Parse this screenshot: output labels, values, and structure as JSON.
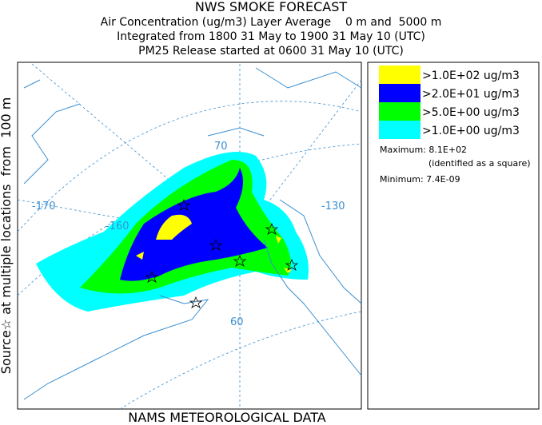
{
  "header": {
    "title": "NWS SMOKE FORECAST",
    "lines": [
      "Air Concentration (ug/m3) Layer Average    0 m and  5000 m",
      "Integrated from 1800 31 May to 1900 31 May 10 (UTC)",
      "PM25 Release started at 0600 31 May 10 (UTC)"
    ]
  },
  "side_label": "Source☆ at multiple locations  from  100 m",
  "footer": "NAMS METEOROLOGICAL DATA",
  "legend": [
    {
      "label": ">1.0E+02 ug/m3",
      "color": "#ffff00"
    },
    {
      "label": ">2.0E+01 ug/m3",
      "color": "#0000ff"
    },
    {
      "label": ">5.0E+00 ug/m3",
      "color": "#00ff00"
    },
    {
      "label": ">1.0E+00 ug/m3",
      "color": "#00ffff"
    }
  ],
  "stats": {
    "maximum": "Maximum: 8.1E+02",
    "max_note": "(identified as a square)",
    "minimum": "Minimum: 7.4E-09"
  },
  "map_labels": [
    "-170",
    "-160",
    "-130",
    "70",
    "60"
  ]
}
